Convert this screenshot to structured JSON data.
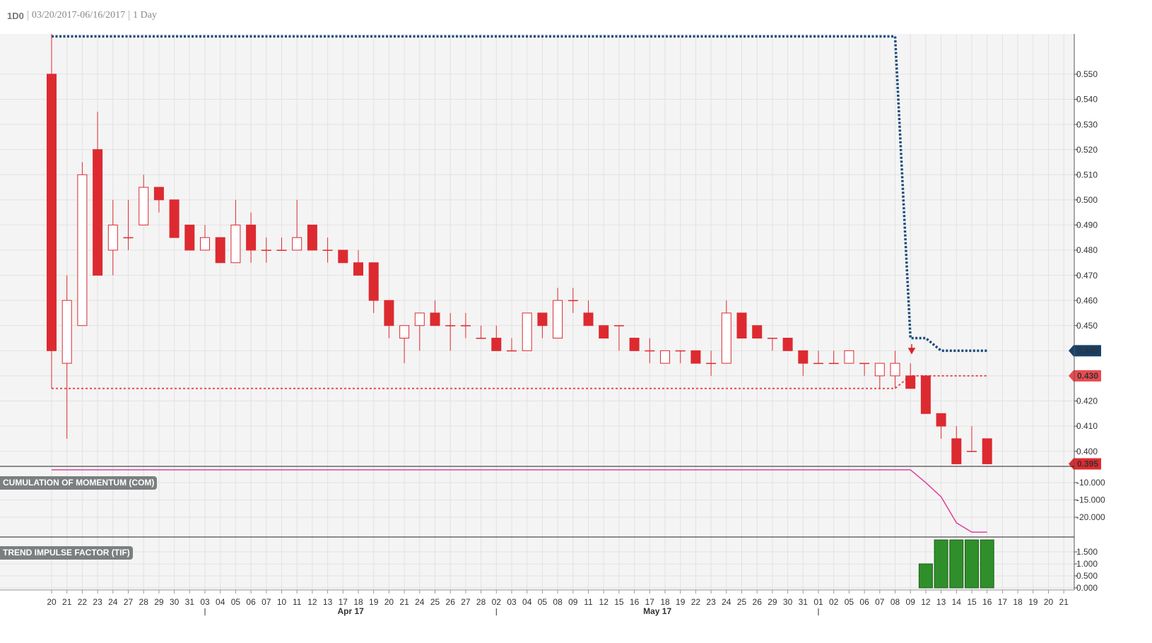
{
  "header": {
    "symbol": "1D0",
    "range": "03/20/2017-06/16/2017",
    "interval": "1 Day"
  },
  "chart_data": [
    {
      "type": "candlestick",
      "categories": [
        "20",
        "21",
        "22",
        "23",
        "24",
        "27",
        "28",
        "29",
        "30",
        "31",
        "03",
        "04",
        "05",
        "06",
        "07",
        "10",
        "11",
        "12",
        "13",
        "17",
        "18",
        "19",
        "20",
        "21",
        "24",
        "25",
        "26",
        "27",
        "28",
        "02",
        "03",
        "04",
        "05",
        "08",
        "09",
        "11",
        "12",
        "15",
        "16",
        "17",
        "18",
        "19",
        "22",
        "23",
        "24",
        "25",
        "26",
        "29",
        "30",
        "31",
        "01",
        "02",
        "05",
        "06",
        "07",
        "08",
        "09",
        "12",
        "13",
        "14",
        "15",
        "16",
        "17",
        "18",
        "19",
        "20",
        "21"
      ],
      "month_labels": [
        "Apr 17",
        "May 17"
      ],
      "color": "#dd2a30",
      "open": [
        0.55,
        0.435,
        0.45,
        0.52,
        0.48,
        0.485,
        0.49,
        0.505,
        0.5,
        0.49,
        0.48,
        0.485,
        0.475,
        0.49,
        0.48,
        0.48,
        0.48,
        0.49,
        0.48,
        0.48,
        0.475,
        0.475,
        0.46,
        0.445,
        0.45,
        0.455,
        0.45,
        0.45,
        0.445,
        0.445,
        0.44,
        0.44,
        0.455,
        0.445,
        0.46,
        0.455,
        0.45,
        0.45,
        0.445,
        0.44,
        0.435,
        0.44,
        0.44,
        0.435,
        0.435,
        0.455,
        0.45,
        0.445,
        0.445,
        0.44,
        0.435,
        0.435,
        0.435,
        0.435,
        0.43,
        0.43,
        0.43,
        0.43,
        0.415,
        0.405,
        0.4,
        0.405,
        null,
        null,
        null,
        null,
        null
      ],
      "high": [
        0.566,
        0.47,
        0.515,
        0.535,
        0.5,
        0.5,
        0.51,
        0.505,
        0.5,
        0.49,
        0.49,
        0.485,
        0.5,
        0.495,
        0.485,
        0.485,
        0.5,
        0.49,
        0.485,
        0.48,
        0.48,
        0.475,
        0.46,
        0.45,
        0.455,
        0.46,
        0.455,
        0.455,
        0.45,
        0.45,
        0.445,
        0.455,
        0.455,
        0.465,
        0.465,
        0.46,
        0.45,
        0.45,
        0.445,
        0.445,
        0.44,
        0.44,
        0.44,
        0.44,
        0.46,
        0.455,
        0.45,
        0.445,
        0.445,
        0.44,
        0.44,
        0.44,
        0.44,
        0.435,
        0.435,
        0.44,
        0.435,
        0.43,
        0.415,
        0.41,
        0.41,
        0.405,
        null,
        null,
        null,
        null,
        null
      ],
      "low": [
        0.425,
        0.405,
        0.45,
        0.47,
        0.47,
        0.48,
        0.49,
        0.495,
        0.485,
        0.48,
        0.48,
        0.475,
        0.475,
        0.475,
        0.475,
        0.48,
        0.48,
        0.48,
        0.475,
        0.475,
        0.47,
        0.455,
        0.445,
        0.435,
        0.44,
        0.45,
        0.44,
        0.445,
        0.445,
        0.44,
        0.44,
        0.44,
        0.445,
        0.445,
        0.455,
        0.45,
        0.445,
        0.44,
        0.44,
        0.435,
        0.435,
        0.435,
        0.435,
        0.43,
        0.435,
        0.445,
        0.445,
        0.44,
        0.44,
        0.43,
        0.435,
        0.435,
        0.435,
        0.43,
        0.425,
        0.425,
        0.425,
        0.415,
        0.405,
        0.395,
        0.4,
        0.395,
        null,
        null,
        null,
        null,
        null
      ],
      "close": [
        0.44,
        0.46,
        0.51,
        0.47,
        0.49,
        0.485,
        0.505,
        0.5,
        0.485,
        0.48,
        0.485,
        0.475,
        0.49,
        0.48,
        0.48,
        0.48,
        0.485,
        0.48,
        0.48,
        0.475,
        0.47,
        0.46,
        0.45,
        0.45,
        0.455,
        0.45,
        0.45,
        0.45,
        0.445,
        0.44,
        0.44,
        0.455,
        0.45,
        0.46,
        0.46,
        0.45,
        0.445,
        0.45,
        0.44,
        0.44,
        0.44,
        0.44,
        0.435,
        0.435,
        0.455,
        0.445,
        0.445,
        0.445,
        0.44,
        0.435,
        0.435,
        0.435,
        0.44,
        0.435,
        0.435,
        0.435,
        0.425,
        0.415,
        0.41,
        0.395,
        0.4,
        0.395,
        null,
        null,
        null,
        null,
        null
      ],
      "close_tag": {
        "value": 0.395,
        "label": "0.395"
      },
      "lines": [
        {
          "color": "#1b4b7c",
          "values": [
            0.565,
            0.565,
            0.565,
            0.565,
            0.565,
            0.565,
            0.565,
            0.565,
            0.565,
            0.565,
            0.565,
            0.565,
            0.565,
            0.565,
            0.565,
            0.565,
            0.565,
            0.565,
            0.565,
            0.565,
            0.565,
            0.565,
            0.565,
            0.565,
            0.565,
            0.565,
            0.565,
            0.565,
            0.565,
            0.565,
            0.565,
            0.565,
            0.565,
            0.565,
            0.565,
            0.565,
            0.565,
            0.565,
            0.565,
            0.565,
            0.565,
            0.565,
            0.565,
            0.565,
            0.565,
            0.565,
            0.565,
            0.565,
            0.565,
            0.565,
            0.565,
            0.565,
            0.565,
            0.565,
            0.565,
            0.565,
            0.445,
            0.445,
            0.44,
            0.44,
            0.44,
            0.44,
            null,
            null,
            null,
            null,
            null
          ],
          "tag": {
            "value": 0.44,
            "label": "0.440"
          }
        },
        {
          "color": "#ea4a4f",
          "values": [
            0.425,
            0.425,
            0.425,
            0.425,
            0.425,
            0.425,
            0.425,
            0.425,
            0.425,
            0.425,
            0.425,
            0.425,
            0.425,
            0.425,
            0.425,
            0.425,
            0.425,
            0.425,
            0.425,
            0.425,
            0.425,
            0.425,
            0.425,
            0.425,
            0.425,
            0.425,
            0.425,
            0.425,
            0.425,
            0.425,
            0.425,
            0.425,
            0.425,
            0.425,
            0.425,
            0.425,
            0.425,
            0.425,
            0.425,
            0.425,
            0.425,
            0.425,
            0.425,
            0.425,
            0.425,
            0.425,
            0.425,
            0.425,
            0.425,
            0.425,
            0.425,
            0.425,
            0.425,
            0.425,
            0.425,
            0.425,
            0.43,
            0.43,
            0.43,
            0.43,
            0.43,
            0.43,
            null,
            null,
            null,
            null,
            null
          ],
          "tag": {
            "value": 0.43,
            "label": "0.430"
          }
        }
      ],
      "ylim": [
        0.394,
        0.566
      ],
      "yticks": [
        {
          "value": 0.4,
          "label": "0.400"
        },
        {
          "value": 0.41,
          "label": "0.410"
        },
        {
          "value": 0.42,
          "label": "0.420"
        },
        {
          "value": 0.43,
          "label": "0.430"
        },
        {
          "value": 0.44,
          "label": "0.440"
        },
        {
          "value": 0.45,
          "label": "0.450"
        },
        {
          "value": 0.46,
          "label": "0.460"
        },
        {
          "value": 0.47,
          "label": "0.470"
        },
        {
          "value": 0.48,
          "label": "0.480"
        },
        {
          "value": 0.49,
          "label": "0.490"
        },
        {
          "value": 0.5,
          "label": "0.500"
        },
        {
          "value": 0.51,
          "label": "0.510"
        },
        {
          "value": 0.52,
          "label": "0.520"
        },
        {
          "value": 0.53,
          "label": "0.530"
        },
        {
          "value": 0.54,
          "label": "0.540"
        },
        {
          "value": 0.55,
          "label": "0.550"
        }
      ],
      "grid": true
    },
    {
      "type": "line",
      "title": "CUMULATION OF MOMENTUM (COM)",
      "color": "#e0409a",
      "values": [
        -6.3,
        -6.3,
        -6.3,
        -6.3,
        -6.3,
        -6.3,
        -6.3,
        -6.3,
        -6.3,
        -6.3,
        -6.3,
        -6.3,
        -6.3,
        -6.3,
        -6.3,
        -6.3,
        -6.3,
        -6.3,
        -6.3,
        -6.3,
        -6.3,
        -6.3,
        -6.3,
        -6.3,
        -6.3,
        -6.3,
        -6.3,
        -6.3,
        -6.3,
        -6.3,
        -6.3,
        -6.3,
        -6.3,
        -6.3,
        -6.3,
        -6.3,
        -6.3,
        -6.3,
        -6.3,
        -6.3,
        -6.3,
        -6.3,
        -6.3,
        -6.3,
        -6.3,
        -6.3,
        -6.3,
        -6.3,
        -6.3,
        -6.3,
        -6.3,
        -6.3,
        -6.3,
        -6.3,
        -6.3,
        -6.3,
        -6.3,
        -10,
        -14.1,
        -21.6,
        -24.3,
        -24.3,
        null,
        null,
        null,
        null,
        null
      ],
      "ylim": [
        -25.7,
        -5.3
      ],
      "yticks": [
        {
          "value": -20,
          "label": "-20.000"
        },
        {
          "value": -15,
          "label": "-15.000"
        },
        {
          "value": -10,
          "label": "-10.000"
        }
      ],
      "grid": true
    },
    {
      "type": "bar",
      "title": "TREND IMPULSE FACTOR (TIF)",
      "color": "#2f8f2a",
      "values": [
        null,
        null,
        null,
        null,
        null,
        null,
        null,
        null,
        null,
        null,
        null,
        null,
        null,
        null,
        null,
        null,
        null,
        null,
        null,
        null,
        null,
        null,
        null,
        null,
        null,
        null,
        null,
        null,
        null,
        null,
        null,
        null,
        null,
        null,
        null,
        null,
        null,
        null,
        null,
        null,
        null,
        null,
        null,
        null,
        null,
        null,
        null,
        null,
        null,
        null,
        null,
        null,
        null,
        null,
        null,
        null,
        null,
        1,
        2,
        2,
        2,
        2,
        null,
        null,
        null,
        null,
        null
      ],
      "ylim": [
        -0.09,
        2.12
      ],
      "yticks": [
        {
          "value": 0,
          "label": "0.000"
        },
        {
          "value": 0.5,
          "label": "0.500"
        },
        {
          "value": 1,
          "label": "1.000"
        },
        {
          "value": 1.5,
          "label": "1.500"
        }
      ],
      "grid": true
    }
  ]
}
